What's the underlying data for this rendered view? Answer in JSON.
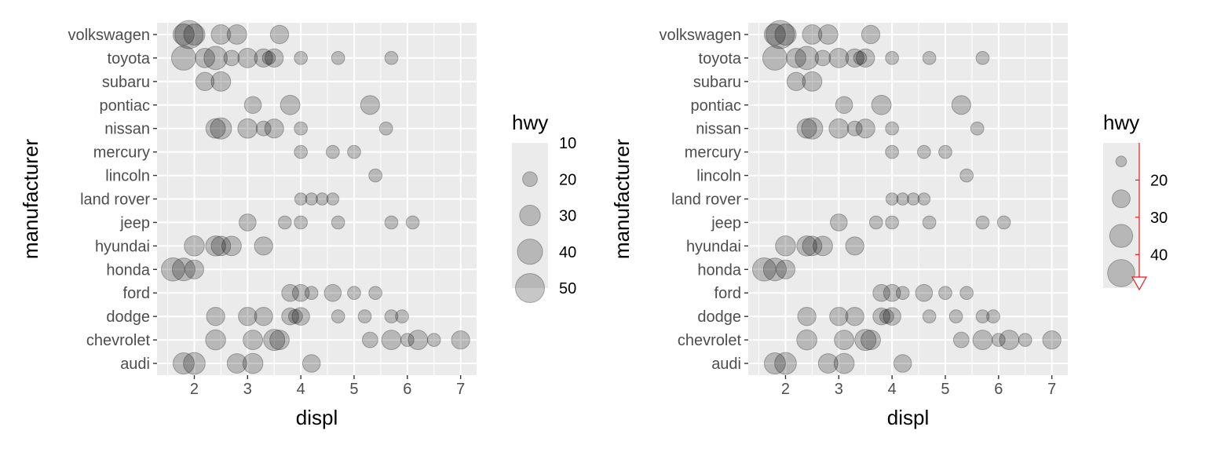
{
  "chart_data": [
    {
      "type": "scatter",
      "title": "",
      "xlabel": "displ",
      "ylabel": "manufacturer",
      "xlim": [
        1.3,
        7.3
      ],
      "xticks": [
        2,
        3,
        4,
        5,
        6,
        7
      ],
      "categories": [
        "audi",
        "chevrolet",
        "dodge",
        "ford",
        "honda",
        "hyundai",
        "jeep",
        "land rover",
        "lincoln",
        "mercury",
        "nissan",
        "pontiac",
        "subaru",
        "toyota",
        "volkswagen"
      ],
      "grid": true,
      "legend": {
        "title": "hwy",
        "style": "size",
        "position": "right",
        "breaks": [
          10,
          20,
          30,
          40,
          50
        ],
        "labels": [
          "10",
          "20",
          "30",
          "40",
          "50"
        ]
      },
      "points": [
        {
          "x": 1.8,
          "y": "audi",
          "hwy": 29
        },
        {
          "x": 2.0,
          "y": "audi",
          "hwy": 30
        },
        {
          "x": 2.8,
          "y": "audi",
          "hwy": 26
        },
        {
          "x": 3.1,
          "y": "audi",
          "hwy": 27
        },
        {
          "x": 4.2,
          "y": "audi",
          "hwy": 23
        },
        {
          "x": 2.4,
          "y": "chevrolet",
          "hwy": 27
        },
        {
          "x": 3.1,
          "y": "chevrolet",
          "hwy": 26
        },
        {
          "x": 3.5,
          "y": "chevrolet",
          "hwy": 29
        },
        {
          "x": 3.6,
          "y": "chevrolet",
          "hwy": 26
        },
        {
          "x": 5.3,
          "y": "chevrolet",
          "hwy": 20
        },
        {
          "x": 5.7,
          "y": "chevrolet",
          "hwy": 26
        },
        {
          "x": 6.0,
          "y": "chevrolet",
          "hwy": 17
        },
        {
          "x": 6.2,
          "y": "chevrolet",
          "hwy": 26
        },
        {
          "x": 6.5,
          "y": "chevrolet",
          "hwy": 17
        },
        {
          "x": 7.0,
          "y": "chevrolet",
          "hwy": 24
        },
        {
          "x": 2.4,
          "y": "dodge",
          "hwy": 24
        },
        {
          "x": 3.0,
          "y": "dodge",
          "hwy": 24
        },
        {
          "x": 3.3,
          "y": "dodge",
          "hwy": 24
        },
        {
          "x": 3.8,
          "y": "dodge",
          "hwy": 22
        },
        {
          "x": 3.9,
          "y": "dodge",
          "hwy": 18
        },
        {
          "x": 4.0,
          "y": "dodge",
          "hwy": 23
        },
        {
          "x": 4.7,
          "y": "dodge",
          "hwy": 17
        },
        {
          "x": 5.2,
          "y": "dodge",
          "hwy": 17
        },
        {
          "x": 5.7,
          "y": "dodge",
          "hwy": 17
        },
        {
          "x": 5.9,
          "y": "dodge",
          "hwy": 17
        },
        {
          "x": 3.8,
          "y": "ford",
          "hwy": 22
        },
        {
          "x": 4.0,
          "y": "ford",
          "hwy": 22
        },
        {
          "x": 4.2,
          "y": "ford",
          "hwy": 17
        },
        {
          "x": 4.6,
          "y": "ford",
          "hwy": 22
        },
        {
          "x": 5.0,
          "y": "ford",
          "hwy": 17
        },
        {
          "x": 5.4,
          "y": "ford",
          "hwy": 17
        },
        {
          "x": 1.6,
          "y": "honda",
          "hwy": 33
        },
        {
          "x": 1.8,
          "y": "honda",
          "hwy": 32
        },
        {
          "x": 2.0,
          "y": "honda",
          "hwy": 25
        },
        {
          "x": 2.0,
          "y": "hyundai",
          "hwy": 27
        },
        {
          "x": 2.4,
          "y": "hyundai",
          "hwy": 27
        },
        {
          "x": 2.5,
          "y": "hyundai",
          "hwy": 26
        },
        {
          "x": 2.7,
          "y": "hyundai",
          "hwy": 26
        },
        {
          "x": 3.3,
          "y": "hyundai",
          "hwy": 24
        },
        {
          "x": 3.0,
          "y": "jeep",
          "hwy": 22
        },
        {
          "x": 3.7,
          "y": "jeep",
          "hwy": 17
        },
        {
          "x": 4.0,
          "y": "jeep",
          "hwy": 17
        },
        {
          "x": 4.7,
          "y": "jeep",
          "hwy": 17
        },
        {
          "x": 5.7,
          "y": "jeep",
          "hwy": 17
        },
        {
          "x": 6.1,
          "y": "jeep",
          "hwy": 17
        },
        {
          "x": 4.0,
          "y": "land rover",
          "hwy": 16
        },
        {
          "x": 4.2,
          "y": "land rover",
          "hwy": 16
        },
        {
          "x": 4.4,
          "y": "land rover",
          "hwy": 16
        },
        {
          "x": 4.6,
          "y": "land rover",
          "hwy": 16
        },
        {
          "x": 5.4,
          "y": "lincoln",
          "hwy": 17
        },
        {
          "x": 4.0,
          "y": "mercury",
          "hwy": 17
        },
        {
          "x": 4.6,
          "y": "mercury",
          "hwy": 17
        },
        {
          "x": 5.0,
          "y": "mercury",
          "hwy": 17
        },
        {
          "x": 2.4,
          "y": "nissan",
          "hwy": 26
        },
        {
          "x": 2.5,
          "y": "nissan",
          "hwy": 29
        },
        {
          "x": 3.0,
          "y": "nissan",
          "hwy": 26
        },
        {
          "x": 3.3,
          "y": "nissan",
          "hwy": 19
        },
        {
          "x": 3.5,
          "y": "nissan",
          "hwy": 25
        },
        {
          "x": 4.0,
          "y": "nissan",
          "hwy": 17
        },
        {
          "x": 5.6,
          "y": "nissan",
          "hwy": 17
        },
        {
          "x": 3.1,
          "y": "pontiac",
          "hwy": 22
        },
        {
          "x": 3.8,
          "y": "pontiac",
          "hwy": 26
        },
        {
          "x": 5.3,
          "y": "pontiac",
          "hwy": 25
        },
        {
          "x": 2.2,
          "y": "subaru",
          "hwy": 24
        },
        {
          "x": 2.5,
          "y": "subaru",
          "hwy": 26
        },
        {
          "x": 1.8,
          "y": "toyota",
          "hwy": 35
        },
        {
          "x": 2.2,
          "y": "toyota",
          "hwy": 26
        },
        {
          "x": 2.4,
          "y": "toyota",
          "hwy": 33
        },
        {
          "x": 2.7,
          "y": "toyota",
          "hwy": 20
        },
        {
          "x": 3.0,
          "y": "toyota",
          "hwy": 26
        },
        {
          "x": 3.3,
          "y": "toyota",
          "hwy": 24
        },
        {
          "x": 3.4,
          "y": "toyota",
          "hwy": 17
        },
        {
          "x": 3.5,
          "y": "toyota",
          "hwy": 24
        },
        {
          "x": 4.0,
          "y": "toyota",
          "hwy": 17
        },
        {
          "x": 4.7,
          "y": "toyota",
          "hwy": 17
        },
        {
          "x": 5.7,
          "y": "toyota",
          "hwy": 17
        },
        {
          "x": 1.8,
          "y": "volkswagen",
          "hwy": 29
        },
        {
          "x": 1.9,
          "y": "volkswagen",
          "hwy": 44
        },
        {
          "x": 2.0,
          "y": "volkswagen",
          "hwy": 29
        },
        {
          "x": 2.5,
          "y": "volkswagen",
          "hwy": 26
        },
        {
          "x": 2.8,
          "y": "volkswagen",
          "hwy": 26
        },
        {
          "x": 3.6,
          "y": "volkswagen",
          "hwy": 24
        }
      ]
    },
    {
      "type": "scatter",
      "title": "",
      "xlabel": "displ",
      "ylabel": "manufacturer",
      "xlim": [
        1.3,
        7.3
      ],
      "xticks": [
        2,
        3,
        4,
        5,
        6,
        7
      ],
      "categories": [
        "audi",
        "chevrolet",
        "dodge",
        "ford",
        "honda",
        "hyundai",
        "jeep",
        "land rover",
        "lincoln",
        "mercury",
        "nissan",
        "pontiac",
        "subaru",
        "toyota",
        "volkswagen"
      ],
      "grid": true,
      "legend": {
        "title": "hwy",
        "style": "size-with-bar",
        "position": "right",
        "breaks": [
          15,
          25,
          35,
          45
        ],
        "labels": [
          "20",
          "30",
          "40"
        ],
        "label_values": [
          20,
          30,
          40
        ],
        "bar_color": "#e31a1c"
      },
      "points": "same as panel 1"
    }
  ]
}
